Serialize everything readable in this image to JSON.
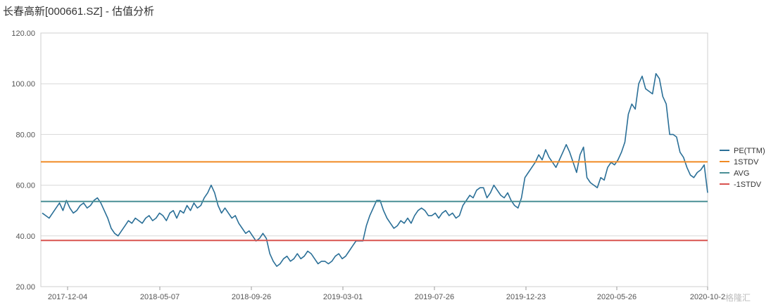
{
  "title": "长春高新[000661.SZ] - 估值分析",
  "watermark": "格隆汇",
  "chart_data": {
    "type": "line",
    "ylim": [
      20,
      120
    ],
    "y_ticks": [
      "120.00",
      "100.00",
      "80.00",
      "60.00",
      "40.00",
      "20.00"
    ],
    "x_ticks": [
      "2017-12-04",
      "2018-05-07",
      "2018-09-26",
      "2019-03-01",
      "2019-07-26",
      "2019-12-23",
      "2020-05-26",
      "2020-10-2"
    ],
    "grid": true,
    "legend_position": "right",
    "series": [
      {
        "name": "PE(TTM)",
        "color": "#2a6f97",
        "values": [
          49,
          48,
          47,
          49,
          51,
          53,
          50,
          54,
          51,
          49,
          50,
          52,
          53,
          51,
          52,
          54,
          55,
          53,
          50,
          47,
          43,
          41,
          40,
          42,
          44,
          46,
          45,
          47,
          46,
          45,
          47,
          48,
          46,
          47,
          49,
          48,
          46,
          49,
          50,
          47,
          50,
          49,
          52,
          50,
          53,
          51,
          52,
          55,
          57,
          60,
          57,
          52,
          49,
          51,
          49,
          47,
          48,
          45,
          43,
          41,
          42,
          40,
          38,
          39,
          41,
          39,
          33,
          30,
          28,
          29,
          31,
          32,
          30,
          31,
          33,
          31,
          32,
          34,
          33,
          31,
          29,
          30,
          30,
          29,
          30,
          32,
          33,
          31,
          32,
          34,
          36,
          38,
          38,
          38,
          44,
          48,
          51,
          54,
          54,
          50,
          47,
          45,
          43,
          44,
          46,
          45,
          47,
          45,
          48,
          50,
          51,
          50,
          48,
          48,
          49,
          47,
          49,
          50,
          48,
          49,
          47,
          48,
          52,
          54,
          56,
          55,
          58,
          59,
          59,
          55,
          57,
          60,
          58,
          56,
          55,
          57,
          54,
          52,
          51,
          55,
          63,
          65,
          67,
          69,
          72,
          70,
          74,
          71,
          69,
          67,
          70,
          73,
          76,
          73,
          69,
          65,
          72,
          75,
          63,
          61,
          60,
          59,
          63,
          62,
          67,
          69,
          68,
          70,
          73,
          77,
          88,
          92,
          90,
          100,
          103,
          98,
          97,
          96,
          104,
          102,
          95,
          92,
          80,
          80,
          79,
          73,
          71,
          67,
          64,
          63,
          65,
          66,
          68,
          57
        ],
        "values_note": "approximate PE values sampled evenly from 2017-11 to 2020-10"
      },
      {
        "name": "1STDV",
        "color": "#f08a24",
        "values": [
          69.2
        ]
      },
      {
        "name": "AVG",
        "color": "#4a8f95",
        "values": [
          53.6
        ]
      },
      {
        "name": "-1STDV",
        "color": "#d9534f",
        "values": [
          38.2
        ]
      }
    ]
  }
}
